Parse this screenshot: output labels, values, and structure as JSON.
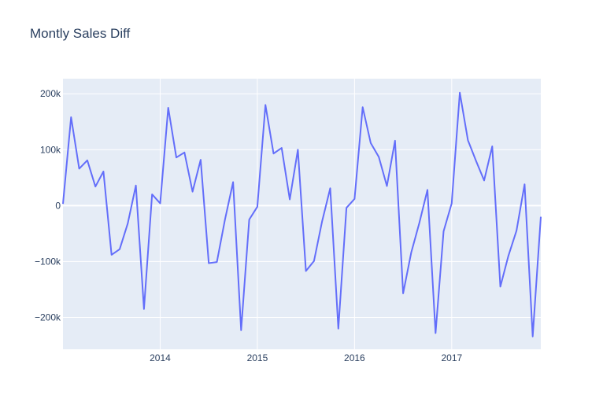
{
  "chart_data": {
    "type": "line",
    "title": "Montly Sales Diff",
    "xlabel": "",
    "ylabel": "",
    "x_start": "2013-01",
    "x_end": "2017-12",
    "xlim": [
      "2013-01",
      "2017-12"
    ],
    "x_ticks": [
      {
        "value": "2014-01",
        "label": "2014"
      },
      {
        "value": "2015-01",
        "label": "2015"
      },
      {
        "value": "2016-01",
        "label": "2016"
      },
      {
        "value": "2017-01",
        "label": "2017"
      }
    ],
    "y_ticks": [
      {
        "value": 200000,
        "label": "200k"
      },
      {
        "value": 100000,
        "label": "100k"
      },
      {
        "value": 0,
        "label": "0"
      },
      {
        "value": -100000,
        "label": "−100k"
      },
      {
        "value": -200000,
        "label": "−200k"
      }
    ],
    "ylim": [
      -257000,
      227000
    ],
    "grid": true,
    "line_color": "#636efa",
    "plot_bg": "#e5ecf6",
    "series": [
      {
        "x": [
          "2013-01",
          "2013-02",
          "2013-03",
          "2013-04",
          "2013-05",
          "2013-06",
          "2013-07",
          "2013-08",
          "2013-09",
          "2013-10",
          "2013-11",
          "2013-12",
          "2014-01",
          "2014-02",
          "2014-03",
          "2014-04",
          "2014-05",
          "2014-06",
          "2014-07",
          "2014-08",
          "2014-09",
          "2014-10",
          "2014-11",
          "2014-12",
          "2015-01",
          "2015-02",
          "2015-03",
          "2015-04",
          "2015-05",
          "2015-06",
          "2015-07",
          "2015-08",
          "2015-09",
          "2015-10",
          "2015-11",
          "2015-12",
          "2016-01",
          "2016-02",
          "2016-03",
          "2016-04",
          "2016-05",
          "2016-06",
          "2016-07",
          "2016-08",
          "2016-09",
          "2016-10",
          "2016-11",
          "2016-12",
          "2017-01",
          "2017-02",
          "2017-03",
          "2017-04",
          "2017-05",
          "2017-06",
          "2017-07",
          "2017-08",
          "2017-09",
          "2017-10",
          "2017-11",
          "2017-12"
        ],
        "values": [
          3000,
          158000,
          66000,
          81000,
          34000,
          61000,
          -88000,
          -78000,
          -32000,
          36000,
          -185000,
          20000,
          4000,
          175000,
          86000,
          95000,
          25000,
          82000,
          -103000,
          -101000,
          -25000,
          42000,
          -223000,
          -25000,
          -2000,
          180000,
          93000,
          103000,
          11000,
          100000,
          -117000,
          -99000,
          -28000,
          31000,
          -220000,
          -4000,
          12000,
          176000,
          112000,
          87000,
          35000,
          116000,
          -157000,
          -84000,
          -31000,
          28000,
          -228000,
          -46000,
          4000,
          202000,
          117000,
          80000,
          45000,
          106000,
          -145000,
          -90000,
          -45000,
          38000,
          -234000,
          -20000
        ]
      }
    ]
  }
}
